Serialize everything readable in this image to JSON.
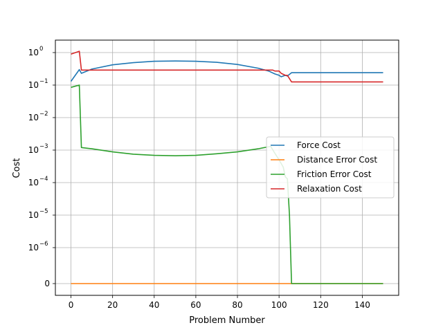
{
  "chart_data": {
    "type": "line",
    "title": "",
    "xlabel": "Problem Number",
    "ylabel": "Cost",
    "yscale": "symlog",
    "xlim": [
      -7.5,
      157.5
    ],
    "grid": true,
    "legend_position": "center-right",
    "x_ticks": [
      0,
      20,
      40,
      60,
      80,
      100,
      120,
      140
    ],
    "y_ticks": [
      {
        "value": 0,
        "label": "0"
      },
      {
        "value": 1e-06,
        "label": "10",
        "exp": "−6"
      },
      {
        "value": 1e-05,
        "label": "10",
        "exp": "−5"
      },
      {
        "value": 0.0001,
        "label": "10",
        "exp": "−4"
      },
      {
        "value": 0.001,
        "label": "10",
        "exp": "−3"
      },
      {
        "value": 0.01,
        "label": "10",
        "exp": "−2"
      },
      {
        "value": 0.1,
        "label": "10",
        "exp": "−1"
      },
      {
        "value": 1,
        "label": "10",
        "exp": "0"
      }
    ],
    "series": [
      {
        "name": "Force Cost",
        "color": "#1f77b4",
        "points": [
          [
            0,
            0.13
          ],
          [
            4,
            0.3
          ],
          [
            5,
            0.23
          ],
          [
            10,
            0.31
          ],
          [
            20,
            0.42
          ],
          [
            30,
            0.49
          ],
          [
            40,
            0.54
          ],
          [
            50,
            0.55
          ],
          [
            60,
            0.54
          ],
          [
            70,
            0.5
          ],
          [
            80,
            0.43
          ],
          [
            90,
            0.33
          ],
          [
            95,
            0.27
          ],
          [
            98,
            0.22
          ],
          [
            100,
            0.2
          ],
          [
            101,
            0.18
          ],
          [
            103,
            0.2
          ],
          [
            104,
            0.19
          ],
          [
            106,
            0.24
          ],
          [
            150,
            0.24
          ]
        ]
      },
      {
        "name": "Distance Error Cost",
        "color": "#ff7f0e",
        "points": [
          [
            0,
            0
          ],
          [
            150,
            0
          ]
        ]
      },
      {
        "name": "Friction Error Cost",
        "color": "#2ca02c",
        "points": [
          [
            0,
            0.085
          ],
          [
            4,
            0.1
          ],
          [
            5,
            0.0012
          ],
          [
            10,
            0.0011
          ],
          [
            20,
            0.00088
          ],
          [
            30,
            0.00075
          ],
          [
            40,
            0.00069
          ],
          [
            50,
            0.00067
          ],
          [
            60,
            0.00069
          ],
          [
            70,
            0.00077
          ],
          [
            80,
            0.00088
          ],
          [
            90,
            0.0011
          ],
          [
            96,
            0.0013
          ],
          [
            98,
            0.0008
          ],
          [
            100,
            0.0005
          ],
          [
            102,
            0.0003
          ],
          [
            103,
            0.00015
          ],
          [
            104,
            0.00013
          ],
          [
            105,
            1e-05
          ],
          [
            106,
            0
          ],
          [
            150,
            0
          ]
        ]
      },
      {
        "name": "Relaxation Cost",
        "color": "#d62728",
        "points": [
          [
            0,
            0.9
          ],
          [
            4,
            1.1
          ],
          [
            5,
            0.29
          ],
          [
            97,
            0.29
          ],
          [
            98,
            0.27
          ],
          [
            100,
            0.27
          ],
          [
            101,
            0.23
          ],
          [
            103,
            0.2
          ],
          [
            104,
            0.2
          ],
          [
            106,
            0.125
          ],
          [
            150,
            0.125
          ]
        ]
      }
    ]
  }
}
